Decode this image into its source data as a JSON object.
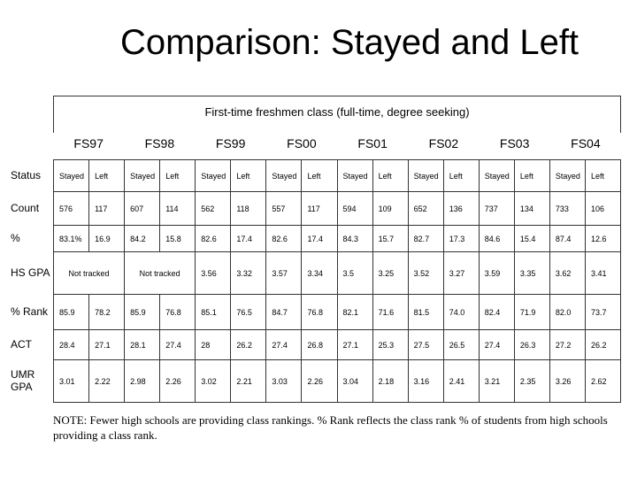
{
  "title": "Comparison: Stayed and Left",
  "subtitle": "First-time freshmen class (full-time, degree seeking)",
  "cohorts": [
    "FS97",
    "FS98",
    "FS99",
    "FS00",
    "FS01",
    "FS02",
    "FS03",
    "FS04"
  ],
  "row_labels": [
    "Status",
    "Count",
    "%",
    "HS GPA",
    "% Rank",
    "ACT",
    "UMR GPA"
  ],
  "status": [
    "Stayed",
    "Left",
    "Stayed",
    "Left",
    "Stayed",
    "Left",
    "Stayed",
    "Left",
    "Stayed",
    "Left",
    "Stayed",
    "Left",
    "Stayed",
    "Left",
    "Stayed",
    "Left"
  ],
  "count": [
    "576",
    "117",
    "607",
    "114",
    "562",
    "118",
    "557",
    "117",
    "594",
    "109",
    "652",
    "136",
    "737",
    "134",
    "733",
    "106"
  ],
  "percent": [
    "83.1%",
    "16.9",
    "84.2",
    "15.8",
    "82.6",
    "17.4",
    "82.6",
    "17.4",
    "84.3",
    "15.7",
    "82.7",
    "17.3",
    "84.6",
    "15.4",
    "87.4",
    "12.6"
  ],
  "hs_gpa_not_tracked": [
    "Not tracked",
    "Not tracked"
  ],
  "hs_gpa": [
    "3.56",
    "3.32",
    "3.57",
    "3.34",
    "3.5",
    "3.25",
    "3.52",
    "3.27",
    "3.59",
    "3.35",
    "3.62",
    "3.41"
  ],
  "rank": [
    "85.9",
    "78.2",
    "85.9",
    "76.8",
    "85.1",
    "76.5",
    "84.7",
    "76.8",
    "82.1",
    "71.6",
    "81.5",
    "74.0",
    "82.4",
    "71.9",
    "82.0",
    "73.7"
  ],
  "act": [
    "28.4",
    "27.1",
    "28.1",
    "27.4",
    "28",
    "26.2",
    "27.4",
    "26.8",
    "27.1",
    "25.3",
    "27.5",
    "26.5",
    "27.4",
    "26.3",
    "27.2",
    "26.2"
  ],
  "umr_gpa": [
    "3.01",
    "2.22",
    "2.98",
    "2.26",
    "3.02",
    "2.21",
    "3.03",
    "2.26",
    "3.04",
    "2.18",
    "3.16",
    "2.41",
    "3.21",
    "2.35",
    "3.26",
    "2.62"
  ],
  "note": "NOTE: Fewer high schools are providing class rankings.  % Rank reflects the class rank % of students from high schools providing a class rank."
}
